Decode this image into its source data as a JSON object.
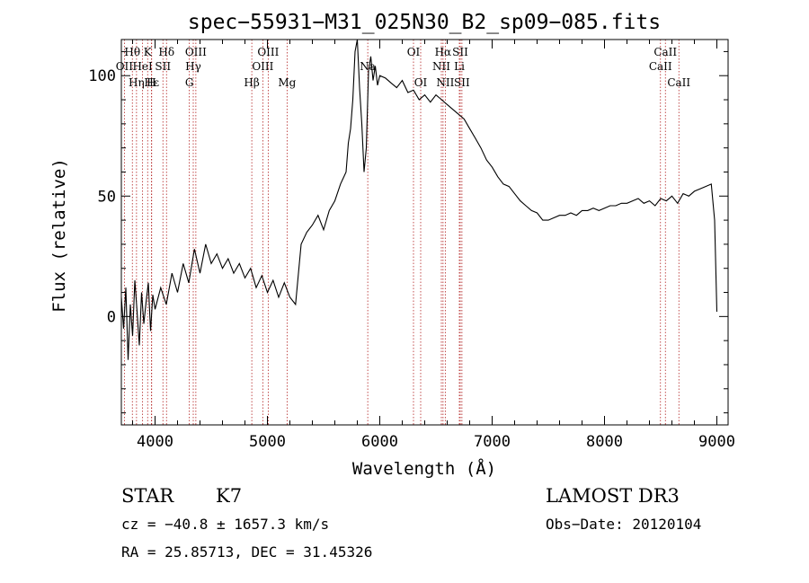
{
  "chart_data": {
    "type": "line",
    "title": "spec−55931−M31_025N30_B2_sp09−085.fits",
    "xlabel": "Wavelength (Å)",
    "ylabel": "Flux (relative)",
    "xlim": [
      3700,
      9100
    ],
    "ylim": [
      -45,
      115
    ],
    "x_ticks": [
      4000,
      5000,
      6000,
      7000,
      8000,
      9000
    ],
    "x_tick_labels": [
      "4000",
      "5000",
      "6000",
      "7000",
      "8000",
      "9000"
    ],
    "y_ticks": [
      0,
      50,
      100
    ],
    "y_tick_labels": [
      "0",
      "50",
      "100"
    ],
    "series": [
      {
        "name": "flux",
        "color": "#000000",
        "x": [
          3700,
          3720,
          3740,
          3760,
          3780,
          3800,
          3820,
          3840,
          3860,
          3880,
          3900,
          3920,
          3940,
          3960,
          3980,
          4000,
          4050,
          4100,
          4150,
          4200,
          4250,
          4300,
          4350,
          4400,
          4450,
          4500,
          4550,
          4600,
          4650,
          4700,
          4750,
          4800,
          4850,
          4900,
          4950,
          5000,
          5050,
          5100,
          5150,
          5200,
          5250,
          5300,
          5350,
          5400,
          5450,
          5500,
          5550,
          5600,
          5650,
          5700,
          5720,
          5740,
          5760,
          5780,
          5800,
          5820,
          5840,
          5860,
          5880,
          5900,
          5920,
          5940,
          5960,
          5980,
          6000,
          6050,
          6100,
          6150,
          6200,
          6250,
          6300,
          6350,
          6400,
          6450,
          6500,
          6550,
          6600,
          6650,
          6700,
          6750,
          6800,
          6850,
          6900,
          6950,
          7000,
          7050,
          7100,
          7150,
          7200,
          7250,
          7300,
          7350,
          7400,
          7450,
          7500,
          7550,
          7600,
          7650,
          7700,
          7750,
          7800,
          7850,
          7900,
          7950,
          8000,
          8050,
          8100,
          8150,
          8200,
          8250,
          8300,
          8350,
          8400,
          8450,
          8500,
          8550,
          8600,
          8650,
          8700,
          8750,
          8800,
          8850,
          8900,
          8950,
          8980,
          9000
        ],
        "values": [
          8,
          -5,
          12,
          -18,
          5,
          -8,
          15,
          2,
          -12,
          10,
          -3,
          6,
          14,
          -6,
          9,
          3,
          12,
          5,
          18,
          10,
          22,
          14,
          28,
          18,
          30,
          22,
          26,
          20,
          24,
          18,
          22,
          16,
          20,
          12,
          17,
          10,
          15,
          8,
          14,
          8,
          5,
          30,
          35,
          38,
          42,
          36,
          44,
          48,
          55,
          60,
          72,
          78,
          90,
          110,
          115,
          95,
          80,
          60,
          70,
          102,
          108,
          98,
          104,
          96,
          100,
          99,
          97,
          95,
          98,
          93,
          94,
          90,
          92,
          89,
          92,
          90,
          88,
          86,
          84,
          82,
          78,
          74,
          70,
          65,
          62,
          58,
          55,
          54,
          51,
          48,
          46,
          44,
          43,
          40,
          40,
          41,
          42,
          42,
          43,
          42,
          44,
          44,
          45,
          44,
          45,
          46,
          46,
          47,
          47,
          48,
          49,
          47,
          48,
          46,
          49,
          48,
          50,
          47,
          51,
          50,
          52,
          53,
          54,
          55,
          40,
          2
        ]
      }
    ],
    "line_markers": [
      {
        "label": "Hθ",
        "x": 3798,
        "row": 1
      },
      {
        "label": "OII",
        "x": 3727,
        "row": 2
      },
      {
        "label": "Hη",
        "x": 3835,
        "row": 3
      },
      {
        "label": "K",
        "x": 3934,
        "row": 1
      },
      {
        "label": "HeI",
        "x": 3889,
        "row": 2
      },
      {
        "label": "Hε",
        "x": 3970,
        "row": 3
      },
      {
        "label": "Hδ",
        "x": 4102,
        "row": 1
      },
      {
        "label": "SII",
        "x": 4070,
        "row": 2
      },
      {
        "label": "H",
        "x": 3968,
        "row": 3
      },
      {
        "label": "OIII",
        "x": 4363,
        "row": 1
      },
      {
        "label": "Hγ",
        "x": 4340,
        "row": 2
      },
      {
        "label": "G",
        "x": 4305,
        "row": 3
      },
      {
        "label": "OIII",
        "x": 5007,
        "row": 1
      },
      {
        "label": "OIII",
        "x": 4959,
        "row": 2
      },
      {
        "label": "Hβ",
        "x": 4861,
        "row": 3
      },
      {
        "label": "Mg",
        "x": 5175,
        "row": 3
      },
      {
        "label": "Na",
        "x": 5893,
        "row": 2
      },
      {
        "label": "OI",
        "x": 6300,
        "row": 1
      },
      {
        "label": "OI",
        "x": 6364,
        "row": 3
      },
      {
        "label": "Hα",
        "x": 6563,
        "row": 1
      },
      {
        "label": "NII",
        "x": 6548,
        "row": 2
      },
      {
        "label": "NII",
        "x": 6583,
        "row": 3
      },
      {
        "label": "SII",
        "x": 6716,
        "row": 1
      },
      {
        "label": "Li",
        "x": 6708,
        "row": 2
      },
      {
        "label": "SII",
        "x": 6731,
        "row": 3
      },
      {
        "label": "CaII",
        "x": 8542,
        "row": 1
      },
      {
        "label": "CaII",
        "x": 8498,
        "row": 2
      },
      {
        "label": "CaII",
        "x": 8662,
        "row": 3
      }
    ]
  },
  "info": {
    "class": "STAR",
    "subclass": "K7",
    "survey": "LAMOST DR3",
    "cz": "cz = −40.8 ± 1657.3 km/s",
    "obs_date": "Obs−Date: 20120104",
    "coords": "RA =  25.85713, DEC =  31.45326"
  }
}
